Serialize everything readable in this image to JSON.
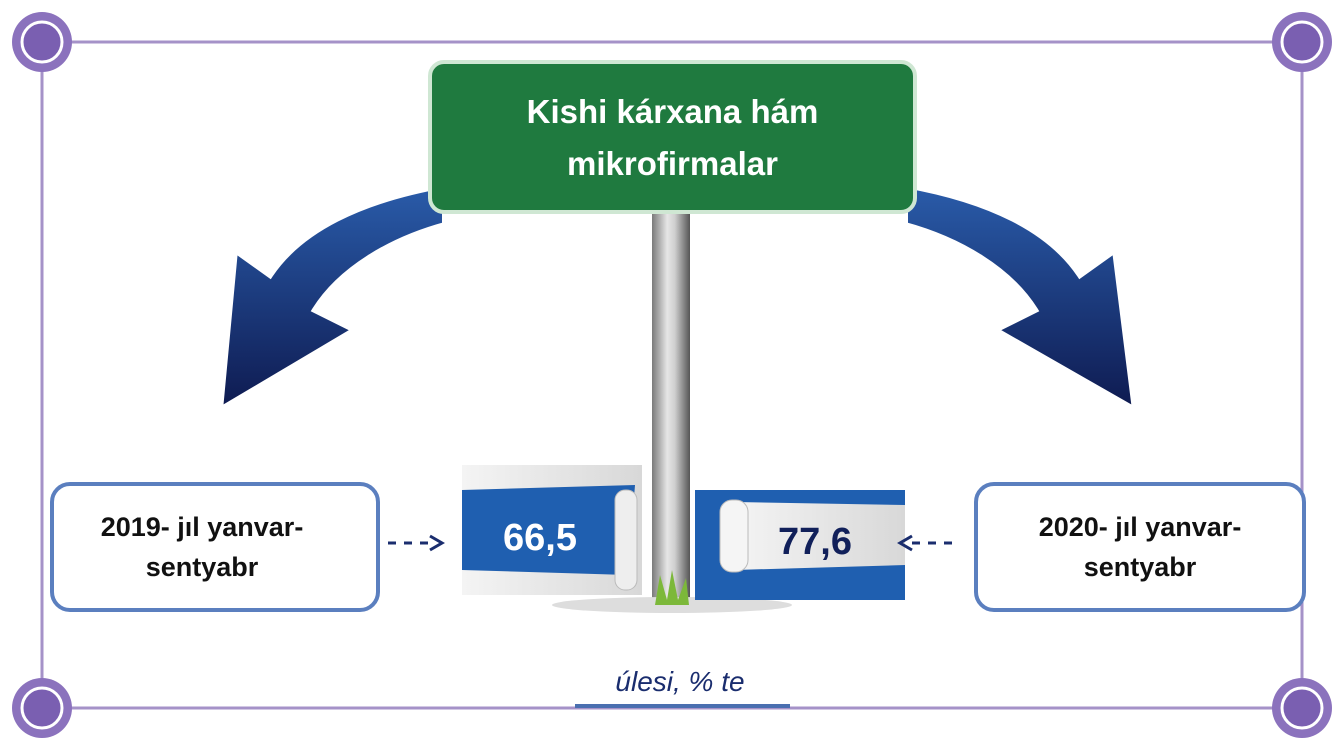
{
  "sign": {
    "title": "Kishi kárxana hám mikrofirmalar"
  },
  "periods": [
    {
      "label": "2019- jıl yanvar-sentyabr",
      "value": "66,5"
    },
    {
      "label": "2020- jıl yanvar-sentyabr",
      "value": "77,6"
    }
  ],
  "note": "úlesi, % te"
}
